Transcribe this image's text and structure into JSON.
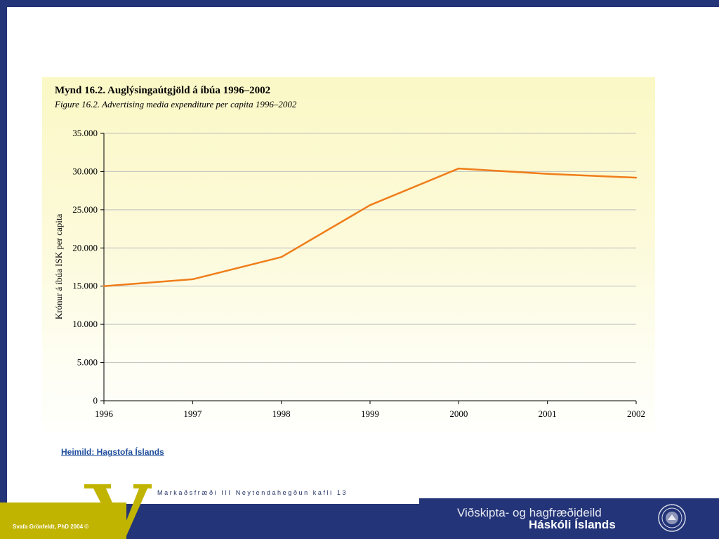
{
  "chart_data": {
    "type": "line",
    "title": "Mynd 16.2. Auglýsingaútgjöld á íbúa 1996–2002",
    "subtitle": "Figure 16.2. Advertising media expenditure per capita 1996–2002",
    "xlabel": "",
    "ylabel": "Krónur á íbúa ISK per capita",
    "x": [
      "1996",
      "1997",
      "1998",
      "1999",
      "2000",
      "2001",
      "2002"
    ],
    "y_tick_labels": [
      "0",
      "5.000",
      "10.000",
      "15.000",
      "20.000",
      "25.000",
      "30.000",
      "35.000"
    ],
    "ylim": [
      0,
      35000
    ],
    "y_ticks": [
      0,
      5000,
      10000,
      15000,
      20000,
      25000,
      30000,
      35000
    ],
    "series": [
      {
        "values": [
          15000,
          15900,
          18800,
          25600,
          30400,
          29700,
          29200
        ]
      }
    ],
    "grid": true,
    "legend": "none"
  },
  "colors": {
    "line": "#ef7d1a",
    "grid": "#c0c0c0",
    "axis": "#000000",
    "panel_bg": "#fbf8c6",
    "frame_navy": "#233478",
    "accent_yellow": "#c1b400"
  },
  "source": {
    "label": "Heimild: Hagstofa Íslands"
  },
  "footer": {
    "course": "Markaðsfræði III Neytendahegðun kafli 13",
    "author": "Svafa Grönfeldt, PhD 2004 ©",
    "department": "Viðskipta- og hagfræðideild",
    "university": "Háskóli Íslands",
    "logo_letter": "V",
    "seal_icon": "university-seal-icon"
  }
}
